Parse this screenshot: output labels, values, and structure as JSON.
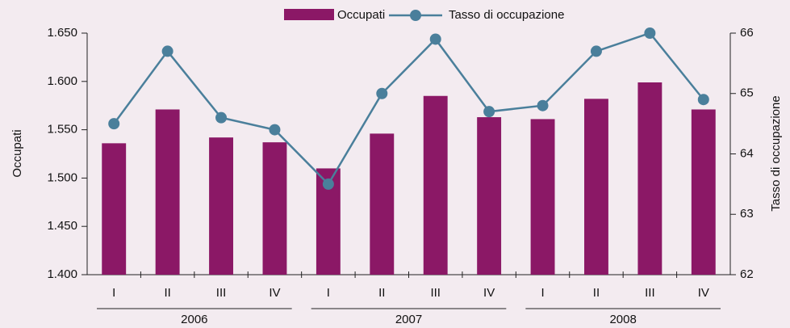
{
  "chart_data": {
    "type": "bar-line",
    "categories": [
      "I",
      "II",
      "III",
      "IV",
      "I",
      "II",
      "III",
      "IV",
      "I",
      "II",
      "III",
      "IV"
    ],
    "groups": [
      "2006",
      "2007",
      "2008"
    ],
    "series": [
      {
        "name": "Occupati",
        "type": "bar",
        "color": "#8b1866",
        "values": [
          1536,
          1571,
          1542,
          1537,
          1510,
          1546,
          1585,
          1563,
          1561,
          1582,
          1599,
          1571
        ]
      },
      {
        "name": "Tasso di occupazione",
        "type": "line",
        "axis": "y2",
        "color": "#4a7f9b",
        "values": [
          64.5,
          65.7,
          64.6,
          64.4,
          63.5,
          65.0,
          65.9,
          64.7,
          64.8,
          65.7,
          66.0,
          64.9
        ]
      }
    ],
    "ylabel": "Occupati",
    "y2label": "Tasso di occupazione",
    "ylim": [
      1400,
      1650
    ],
    "yticks": [
      {
        "value": 1400,
        "label": "1.400"
      },
      {
        "value": 1450,
        "label": "1.450"
      },
      {
        "value": 1500,
        "label": "1.500"
      },
      {
        "value": 1550,
        "label": "1.550"
      },
      {
        "value": 1600,
        "label": "1.600"
      },
      {
        "value": 1650,
        "label": "1.650"
      }
    ],
    "y2lim": [
      62,
      66
    ],
    "y2ticks": [
      62,
      63,
      64,
      65,
      66
    ]
  }
}
